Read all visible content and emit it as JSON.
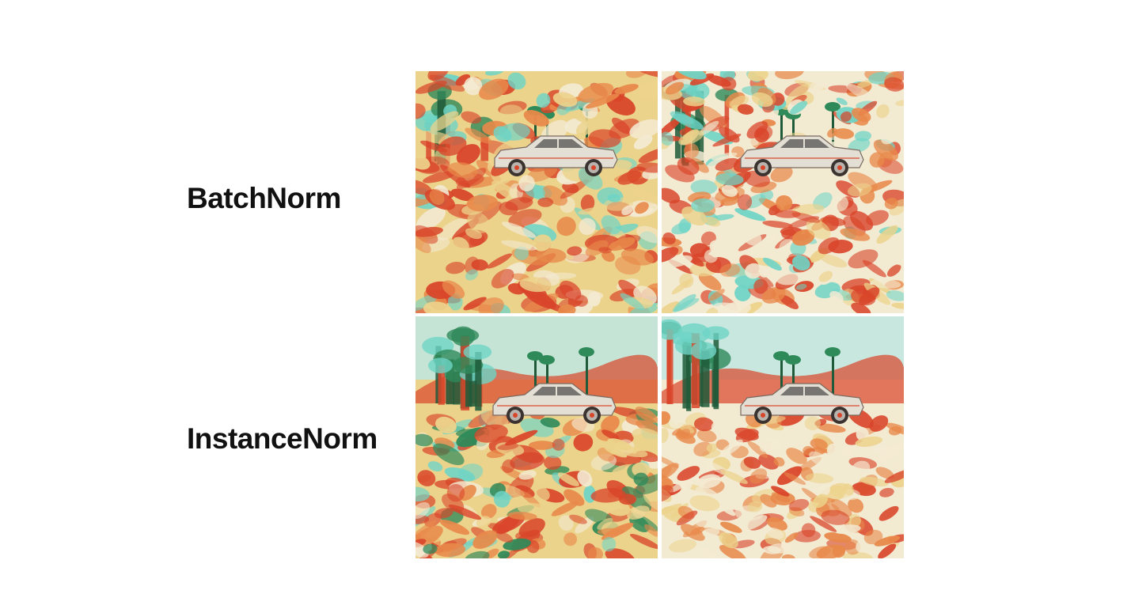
{
  "labels": {
    "batchnorm": "BatchNorm",
    "instancenorm": "InstanceNorm"
  },
  "panels": [
    {
      "row": "batchnorm",
      "column": 1,
      "icon": "stylized-car-image"
    },
    {
      "row": "batchnorm",
      "column": 2,
      "icon": "stylized-car-image"
    },
    {
      "row": "instancenorm",
      "column": 1,
      "icon": "stylized-car-image"
    },
    {
      "row": "instancenorm",
      "column": 2,
      "icon": "stylized-car-image"
    }
  ],
  "colors": {
    "red": "#d9452a",
    "orange": "#e8894a",
    "yellow": "#ecd38c",
    "cream": "#f3ead2",
    "teal": "#6ed4c6",
    "green": "#2f8a5a",
    "dark_green": "#1f5a3a",
    "sky": "#bfe6e2"
  }
}
